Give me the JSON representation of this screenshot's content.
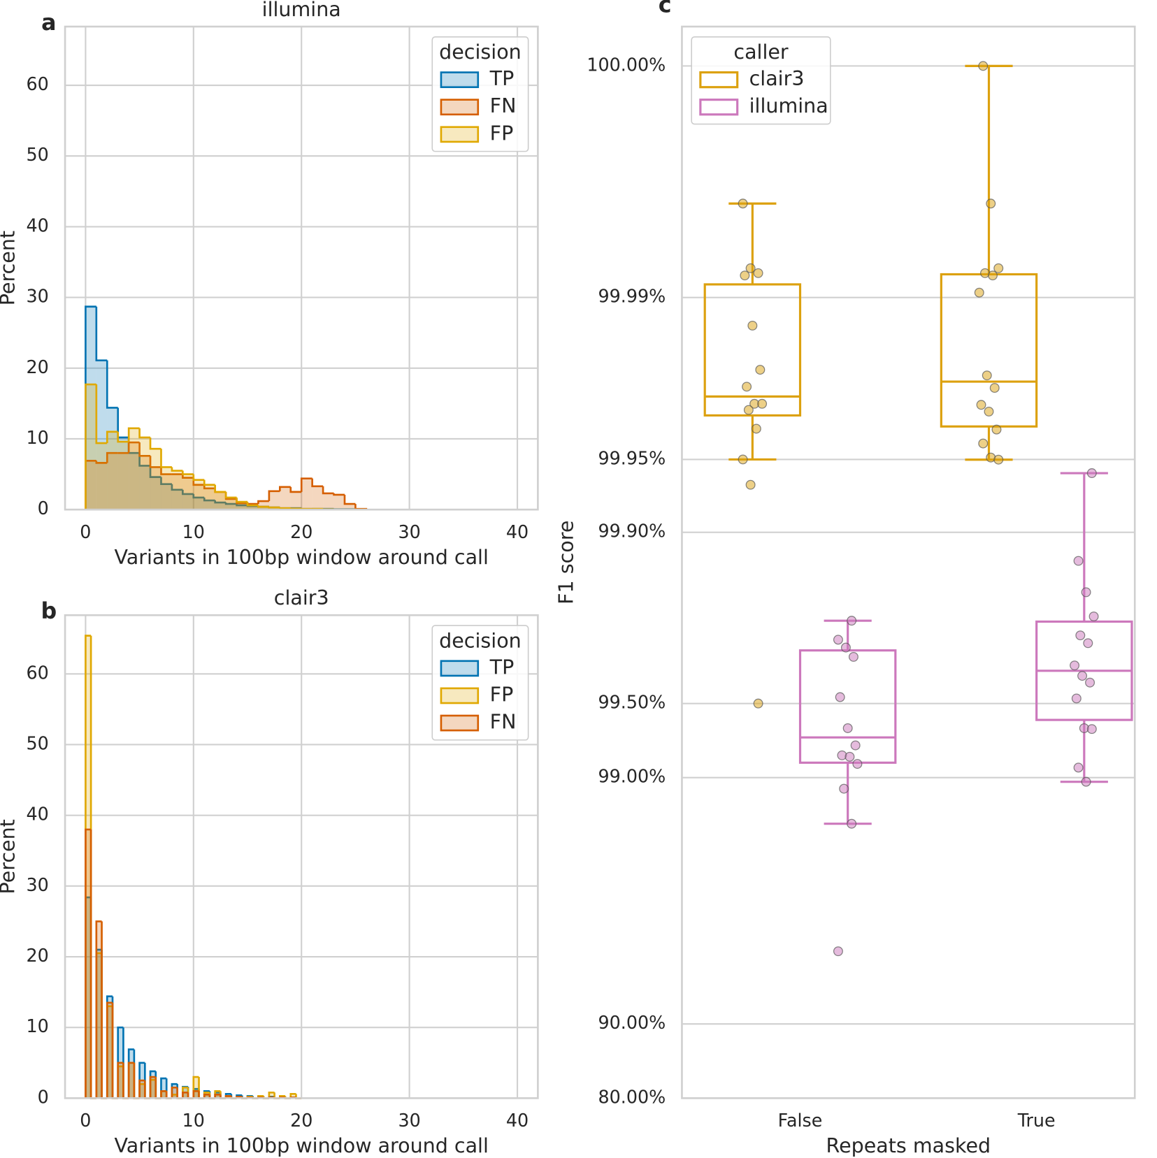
{
  "chart_data": [
    {
      "type": "histogram",
      "panel_label": "a",
      "title": "illumina",
      "xlabel": "Variants in 100bp window around call",
      "ylabel": "Percent",
      "bins": [
        0,
        1,
        2,
        3,
        4,
        5,
        6,
        7,
        8,
        9,
        10,
        11,
        12,
        13,
        14,
        15,
        16,
        17,
        18,
        19,
        20,
        21,
        22,
        23,
        24,
        25,
        26
      ],
      "series": [
        {
          "name": "TP",
          "color": "#0173b2",
          "values": [
            28.7,
            21.1,
            14.4,
            10.2,
            8.0,
            6.2,
            4.6,
            3.6,
            2.8,
            2.2,
            1.7,
            1.3,
            1.0,
            0.8,
            0.6,
            0.5,
            0.4,
            0.3,
            0.2,
            0.2,
            0.1,
            0.1,
            0.1,
            0.05,
            0.05,
            0
          ]
        },
        {
          "name": "FN",
          "color": "#d55e00",
          "values": [
            6.9,
            6.6,
            8.0,
            8.0,
            9.5,
            7.6,
            6.0,
            5.0,
            5.0,
            4.5,
            3.5,
            3.0,
            2.5,
            1.5,
            0.9,
            0.8,
            1.2,
            2.6,
            3.2,
            2.5,
            4.4,
            3.3,
            2.3,
            2.1,
            0.8,
            0.1
          ]
        },
        {
          "name": "FP",
          "color": "#e0a800",
          "values": [
            17.7,
            9.4,
            11.0,
            9.6,
            11.5,
            10.2,
            8.6,
            6.0,
            5.5,
            5.0,
            4.2,
            3.5,
            2.5,
            1.7,
            1.1,
            0.6,
            0.4,
            0.3,
            0.2,
            0.15,
            0.1,
            0.1,
            0.05,
            0,
            0,
            0
          ]
        }
      ],
      "xlim": [
        -1.9,
        41.9
      ],
      "xticks": [
        0,
        10,
        20,
        30,
        40
      ],
      "ylim": [
        0,
        68.3
      ],
      "yticks": [
        0,
        10,
        20,
        30,
        40,
        50,
        60
      ],
      "grid": true,
      "legend_title": "decision",
      "legend": "upper right"
    },
    {
      "type": "histogram",
      "panel_label": "b",
      "title": "clair3",
      "xlabel": "Variants in 100bp window around call",
      "ylabel": "Percent",
      "bins": [
        0,
        0.5,
        1,
        1.5,
        2,
        2.5,
        3,
        3.5,
        4,
        4.5,
        5,
        5.5,
        6,
        6.5,
        7,
        7.5,
        8,
        8.5,
        9,
        9.5,
        10,
        10.5,
        11,
        11.5,
        12,
        12.5,
        13,
        13.5,
        14,
        14.5,
        15,
        15.5,
        16,
        16.5,
        17,
        17.5,
        18,
        18.5,
        19,
        19.5,
        20
      ],
      "series": [
        {
          "name": "TP",
          "color": "#0173b2",
          "values": [
            28.4,
            0,
            21.0,
            0,
            14.4,
            0,
            10.0,
            0,
            6.9,
            0,
            5.0,
            0,
            3.8,
            0,
            2.8,
            0,
            2.0,
            0,
            1.6,
            0,
            1.3,
            0,
            1.0,
            0,
            0.8,
            0,
            0.6,
            0,
            0.4,
            0,
            0.3,
            0,
            0.25,
            0,
            0.2,
            0,
            0.15,
            0,
            0.1,
            0
          ]
        },
        {
          "name": "FP",
          "color": "#e0a800",
          "values": [
            65.4,
            0,
            20.5,
            0,
            13.0,
            0,
            4.5,
            0,
            5.0,
            0,
            2.0,
            0,
            2.6,
            0,
            1.0,
            0,
            0.5,
            0,
            1.5,
            0,
            3.0,
            0,
            0.8,
            0,
            1.0,
            0,
            0.2,
            0,
            0.2,
            0,
            0.2,
            0,
            0.3,
            0,
            0.8,
            0,
            0.3,
            0,
            0.6,
            0
          ]
        },
        {
          "name": "FN",
          "color": "#d55e00",
          "values": [
            38.0,
            0,
            25.0,
            0,
            13.5,
            0,
            5.0,
            0,
            5.0,
            0,
            2.5,
            0,
            3.0,
            0,
            1.0,
            0,
            1.5,
            0,
            0.8,
            0,
            1.0,
            0,
            0.5,
            0,
            0.5,
            0,
            0.3,
            0,
            0.2,
            0,
            0.1,
            0,
            0.1,
            0,
            0.1,
            0,
            0.1,
            0,
            0.1,
            0
          ]
        }
      ],
      "xlim": [
        -1.9,
        41.9
      ],
      "xticks": [
        0,
        10,
        20,
        30,
        40
      ],
      "ylim": [
        0,
        68.3
      ],
      "yticks": [
        0,
        10,
        20,
        30,
        40,
        50,
        60
      ],
      "grid": true,
      "legend_title": "decision",
      "legend": "upper right"
    },
    {
      "type": "box",
      "panel_label": "c",
      "xlabel": "Repeats masked",
      "ylabel": "F1 score",
      "categories": [
        "False",
        "True"
      ],
      "yscale": "log-complement",
      "ylim": [
        80,
        100.0004
      ],
      "yticks": [
        {
          "value": 80,
          "label": "80.00%"
        },
        {
          "value": 90,
          "label": "90.00%"
        },
        {
          "value": 99,
          "label": "99.00%"
        },
        {
          "value": 99.5,
          "label": "99.50%"
        },
        {
          "value": 99.9,
          "label": "99.90%"
        },
        {
          "value": 99.95,
          "label": "99.95%"
        },
        {
          "value": 99.99,
          "label": "99.99%"
        },
        {
          "value": 100,
          "label": "100.00%"
        }
      ],
      "grid": true,
      "legend_title": "caller",
      "legend": "upper left",
      "series": [
        {
          "name": "clair3",
          "color": "#dca10f",
          "boxes": [
            {
              "whislo": 99.95,
              "q1": 99.9673,
              "median": 99.9728,
              "q3": 99.9913,
              "whishi": 99.9966
            },
            {
              "whislo": 99.9499,
              "q1": 99.9636,
              "median": 99.9765,
              "q3": 99.9922,
              "whishi": 100
            }
          ],
          "points": [
            [
              99.9966,
              99.9927,
              99.9923,
              99.9921,
              99.9866,
              99.9791,
              99.9753,
              99.9708,
              99.9708,
              99.969,
              99.9628,
              99.95,
              99.9363,
              99.5
            ],
            [
              100,
              99.9966,
              99.9927,
              99.9923,
              99.9921,
              99.9905,
              99.9779,
              99.975,
              99.9705,
              99.9685,
              99.9625,
              99.9571,
              99.9509,
              99.9499
            ]
          ]
        },
        {
          "name": "illumina",
          "color": "#cc78bc",
          "boxes": [
            {
              "whislo": 98.46,
              "q1": 99.13,
              "median": 99.313,
              "q3": 99.696,
              "whishi": 99.77
            },
            {
              "whislo": 98.96,
              "q1": 99.417,
              "median": 99.632,
              "q3": 99.768,
              "whishi": 99.943
            }
          ],
          "points": [
            [
              99.77,
              99.725,
              99.704,
              99.677,
              99.529,
              99.37,
              99.26,
              99.188,
              99.177,
              99.12,
              98.89,
              98.46,
              94.93
            ],
            [
              99.943,
              99.869,
              99.824,
              99.779,
              99.736,
              99.716,
              99.65,
              99.614,
              99.589,
              99.523,
              99.37,
              99.365,
              99.089,
              98.96
            ]
          ]
        }
      ]
    }
  ]
}
